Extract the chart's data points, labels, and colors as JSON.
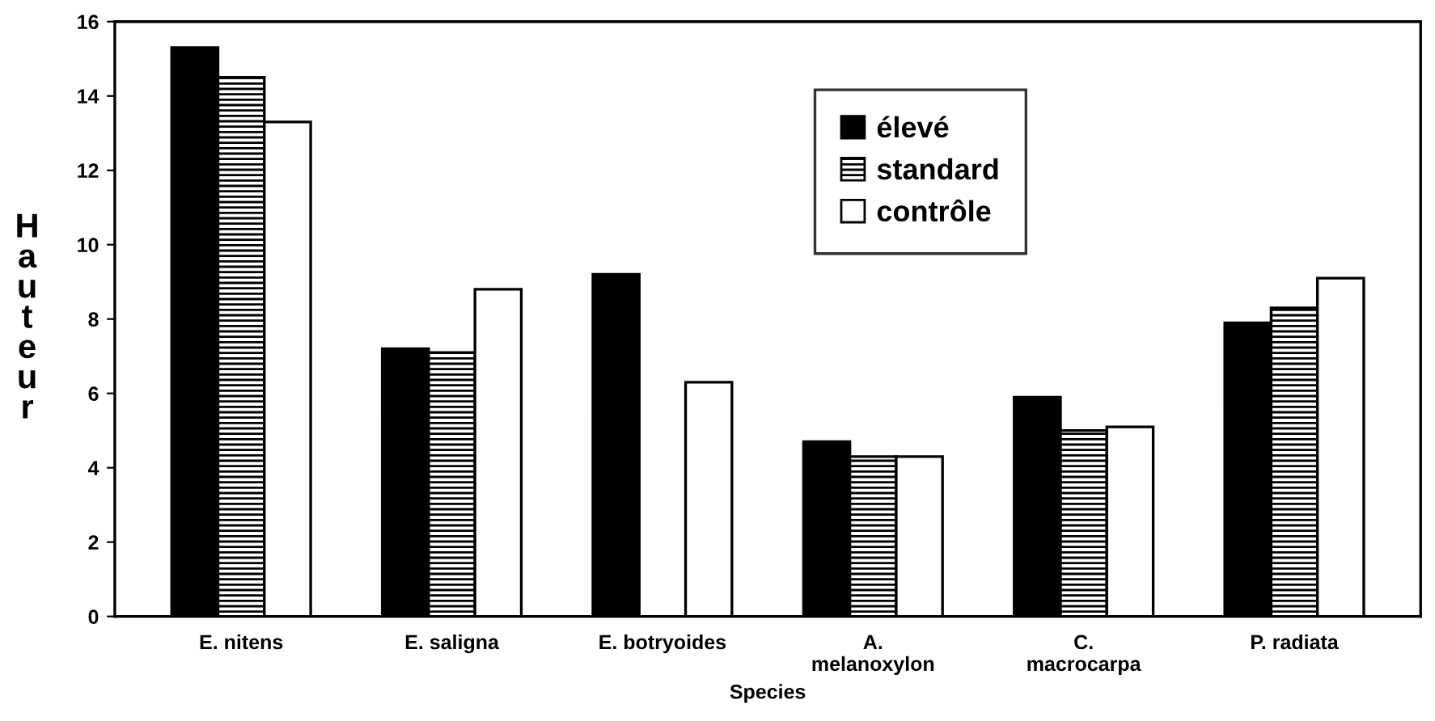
{
  "chart_data": {
    "type": "bar",
    "xlabel": "Species",
    "ylabel": "Hauteur",
    "categories": [
      "E. nitens",
      "E. saligna",
      "E. botryoides",
      "A.\nmelanoxylon",
      "C.\nmacrocarpa",
      "P. radiata"
    ],
    "series": [
      {
        "name": "élevé",
        "color": "#000000",
        "values": [
          15.3,
          7.2,
          9.2,
          4.7,
          5.9,
          7.9
        ]
      },
      {
        "name": "standard",
        "color": "#000000",
        "values": [
          14.5,
          7.1,
          null,
          4.3,
          5.0,
          8.3
        ]
      },
      {
        "name": "contrôle",
        "color": "#ffffff",
        "values": [
          13.3,
          8.8,
          6.3,
          4.3,
          5.1,
          9.1
        ]
      }
    ],
    "ylim": [
      0,
      16
    ],
    "yticks": [
      0,
      2,
      4,
      6,
      8,
      10,
      12,
      14,
      16
    ],
    "grid": false,
    "legend": "top"
  }
}
